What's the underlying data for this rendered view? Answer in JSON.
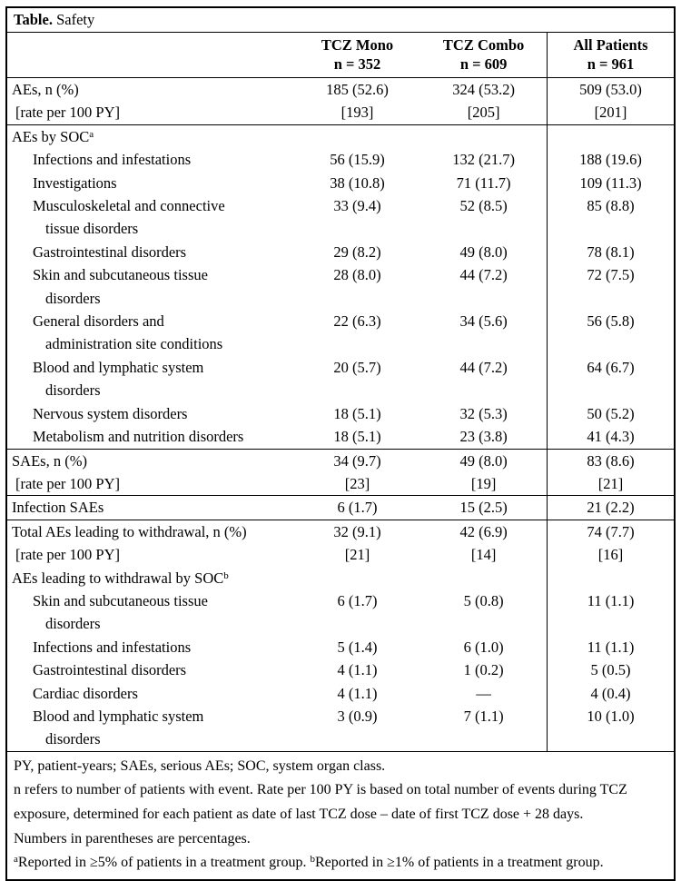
{
  "title": {
    "bold": "Table.",
    "rest": " Safety"
  },
  "header": {
    "mono": {
      "line1": "TCZ Mono",
      "line2": "n = 352"
    },
    "combo": {
      "line1": "TCZ Combo",
      "line2": "n = 609"
    },
    "all": {
      "line1": "All Patients",
      "line2": "n = 961"
    }
  },
  "rows": [
    {
      "label": "AEs, n (%)",
      "mono": "185 (52.6)",
      "combo": "324 (53.2)",
      "all": "509 (53.0)"
    },
    {
      "label": "[rate per 100 PY]",
      "mono": "[193]",
      "combo": "[205]",
      "all": "[201]"
    },
    {
      "label": "AEs by SOC",
      "sup": "a"
    },
    {
      "label": "Infections and infestations",
      "mono": "56 (15.9)",
      "combo": "132 (21.7)",
      "all": "188 (19.6)"
    },
    {
      "label": "Investigations",
      "mono": "38 (10.8)",
      "combo": "71 (11.7)",
      "all": "109 (11.3)"
    },
    {
      "label": "Musculoskeletal and connective",
      "label2": "tissue disorders",
      "mono": "33 (9.4)",
      "combo": "52 (8.5)",
      "all": "85 (8.8)"
    },
    {
      "label": "Gastrointestinal disorders",
      "mono": "29 (8.2)",
      "combo": "49 (8.0)",
      "all": "78 (8.1)"
    },
    {
      "label": "Skin and subcutaneous tissue",
      "label2": "disorders",
      "mono": "28 (8.0)",
      "combo": "44 (7.2)",
      "all": "72 (7.5)"
    },
    {
      "label": "General disorders and",
      "label2": "administration site conditions",
      "mono": "22 (6.3)",
      "combo": "34 (5.6)",
      "all": "56 (5.8)"
    },
    {
      "label": "Blood and lymphatic system",
      "label2": "disorders",
      "mono": "20 (5.7)",
      "combo": "44 (7.2)",
      "all": "64 (6.7)"
    },
    {
      "label": "Nervous system disorders",
      "mono": "18 (5.1)",
      "combo": "32 (5.3)",
      "all": "50 (5.2)"
    },
    {
      "label": "Metabolism and nutrition disorders",
      "mono": "18 (5.1)",
      "combo": "23 (3.8)",
      "all": "41 (4.3)"
    },
    {
      "label": "SAEs, n (%)",
      "mono": "34 (9.7)",
      "combo": "49 (8.0)",
      "all": "83 (8.6)"
    },
    {
      "label": "[rate per 100 PY]",
      "mono": "[23]",
      "combo": "[19]",
      "all": "[21]"
    },
    {
      "label": "Infection SAEs",
      "mono": "6 (1.7)",
      "combo": "15 (2.5)",
      "all": "21 (2.2)"
    },
    {
      "label": "Total AEs leading to withdrawal, n (%)",
      "mono": "32 (9.1)",
      "combo": "42 (6.9)",
      "all": "74 (7.7)"
    },
    {
      "label": "[rate per 100 PY]",
      "mono": "[21]",
      "combo": "[14]",
      "all": "[16]"
    },
    {
      "label": "AEs leading to withdrawal by SOC",
      "sup": "b"
    },
    {
      "label": "Skin and subcutaneous tissue",
      "label2": "disorders",
      "mono": "6 (1.7)",
      "combo": "5 (0.8)",
      "all": "11 (1.1)"
    },
    {
      "label": "Infections and infestations",
      "mono": "5 (1.4)",
      "combo": "6 (1.0)",
      "all": "11 (1.1)"
    },
    {
      "label": "Gastrointestinal disorders",
      "mono": "4 (1.1)",
      "combo": "1 (0.2)",
      "all": "5 (0.5)"
    },
    {
      "label": "Cardiac disorders",
      "mono": "4 (1.1)",
      "combo": "—",
      "all": "4 (0.4)"
    },
    {
      "label": "Blood and lymphatic system",
      "label2": "disorders",
      "mono": "3 (0.9)",
      "combo": "7 (1.1)",
      "all": "10 (1.0)"
    }
  ],
  "footnotes": {
    "abbreviations": "PY, patient-years; SAEs, serious AEs; SOC, system organ class.",
    "n_definition": "n refers to number of patients with event. Rate per 100 PY is based on total number of events during TCZ exposure, determined for each patient as date of last TCZ dose – date of first TCZ dose + 28 days.",
    "percentages": "Numbers in parentheses are percentages.",
    "threshold_a_sup": "a",
    "threshold_a": "Reported in ≥5% of patients in a treatment group. ",
    "threshold_b_sup": "b",
    "threshold_b": "Reported in ≥1% of patients in a treatment group."
  }
}
